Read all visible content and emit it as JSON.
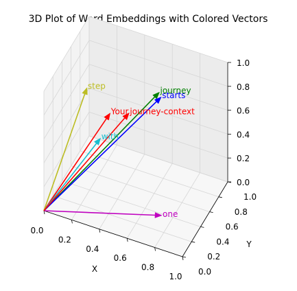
{
  "chart_data": {
    "type": "3d-quiver",
    "title": "3D Plot of Word Embeddings with Colored Vectors",
    "xlabel": "X",
    "ylabel": "Y",
    "zlabel": "",
    "xlim": [
      0,
      1
    ],
    "ylim": [
      0,
      1
    ],
    "zlim": [
      0,
      1
    ],
    "grid": true,
    "origin": [
      0,
      0,
      0
    ],
    "x_ticks": [
      "0.0",
      "0.2",
      "0.4",
      "0.6",
      "0.8",
      "1.0"
    ],
    "y_ticks": [
      "0.0",
      "0.2",
      "0.4",
      "0.6",
      "0.8",
      "1.0"
    ],
    "z_ticks": [
      "0.0",
      "0.2",
      "0.4",
      "0.6",
      "0.8",
      "1.0"
    ],
    "vectors": [
      {
        "label": "Your",
        "x": 0.43,
        "y": 0.15,
        "z": 0.89,
        "color": "#ff0000"
      },
      {
        "label": "journey",
        "x": 0.55,
        "y": 0.87,
        "z": 0.66,
        "color": "#008000"
      },
      {
        "label": "starts",
        "x": 0.57,
        "y": 0.85,
        "z": 0.64,
        "color": "#0000ff"
      },
      {
        "label": "with",
        "x": 0.22,
        "y": 0.58,
        "z": 0.33,
        "color": "#17becf"
      },
      {
        "label": "one",
        "x": 0.77,
        "y": 0.25,
        "z": 0.1,
        "color": "#bf00bf"
      },
      {
        "label": "step",
        "x": 0.05,
        "y": 0.8,
        "z": 0.55,
        "color": "#bcbd22"
      },
      {
        "label": "journey-context",
        "x": 0.4,
        "y": 0.66,
        "z": 0.56,
        "color": "#ff0000"
      }
    ]
  }
}
